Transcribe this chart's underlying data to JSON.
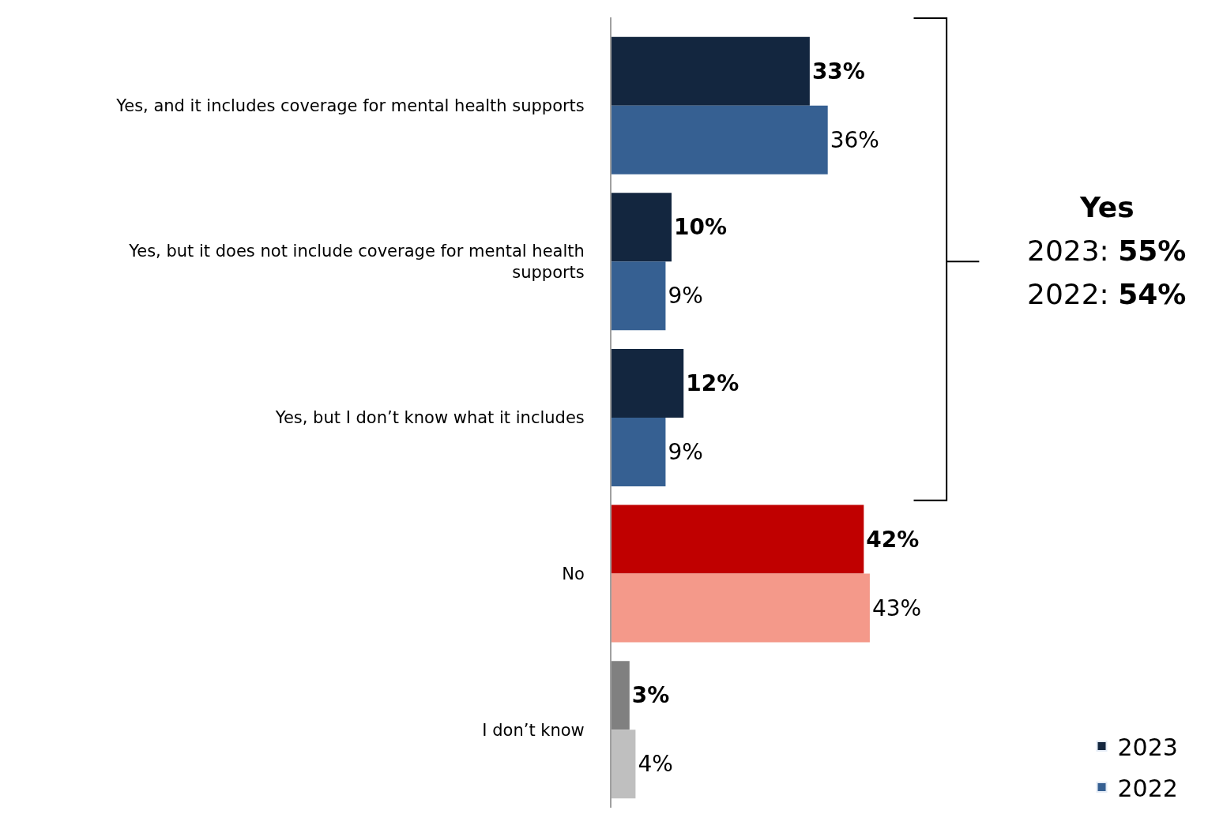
{
  "chart_data": {
    "type": "bar",
    "orientation": "horizontal",
    "data_labels": true,
    "legend": "bottom right",
    "categories": [
      "Yes, and it includes coverage for mental health supports",
      "Yes, but it does not include coverage for mental health supports",
      "Yes, but I don’t know what it includes",
      "No",
      "I don’t know"
    ],
    "series": [
      {
        "name": "2023",
        "color": "#13263f",
        "colors": [
          "#13263f",
          "#13263f",
          "#13263f",
          "#c00000",
          "#808080"
        ],
        "values": [
          33,
          10,
          12,
          42,
          3
        ],
        "value_labels": [
          "33%",
          "10%",
          "12%",
          "42%",
          "3%"
        ]
      },
      {
        "name": "2022",
        "color": "#366092",
        "colors": [
          "#366092",
          "#366092",
          "#366092",
          "#f4998a",
          "#bfbfbf"
        ],
        "values": [
          36,
          9,
          9,
          43,
          4
        ],
        "value_labels": [
          "36%",
          "9%",
          "9%",
          "43%",
          "4%"
        ]
      }
    ],
    "annotations": [
      "Yes",
      "2023: 55%",
      "2022: 54%"
    ]
  }
}
